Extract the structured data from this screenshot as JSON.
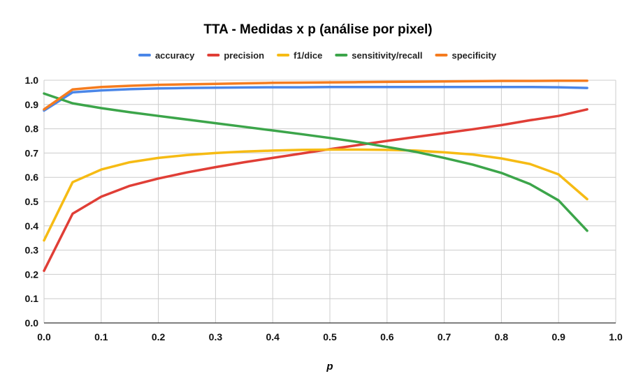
{
  "chart_data": {
    "type": "line",
    "title": "TTA - Medidas x p (análise por pixel)",
    "xlabel": "p",
    "ylabel": "",
    "xlim": [
      0,
      1
    ],
    "ylim": [
      0,
      1
    ],
    "grid": true,
    "legend_position": "top",
    "x_ticks": [
      "0.0",
      "0.1",
      "0.2",
      "0.3",
      "0.4",
      "0.5",
      "0.6",
      "0.7",
      "0.8",
      "0.9",
      "1.0"
    ],
    "y_ticks": [
      "0.0",
      "0.1",
      "0.2",
      "0.3",
      "0.4",
      "0.5",
      "0.6",
      "0.7",
      "0.8",
      "0.9",
      "1.0"
    ],
    "x": [
      0,
      0.05,
      0.1,
      0.15,
      0.2,
      0.25,
      0.3,
      0.35,
      0.4,
      0.45,
      0.5,
      0.55,
      0.6,
      0.65,
      0.7,
      0.75,
      0.8,
      0.85,
      0.9,
      0.95
    ],
    "series": [
      {
        "name": "accuracy",
        "color": "#4a86e8",
        "values": [
          0.875,
          0.95,
          0.958,
          0.963,
          0.966,
          0.968,
          0.969,
          0.97,
          0.971,
          0.971,
          0.972,
          0.972,
          0.972,
          0.972,
          0.972,
          0.972,
          0.972,
          0.972,
          0.971,
          0.968
        ]
      },
      {
        "name": "precision",
        "color": "#e03e36",
        "values": [
          0.215,
          0.45,
          0.52,
          0.565,
          0.595,
          0.62,
          0.642,
          0.662,
          0.68,
          0.698,
          0.716,
          0.733,
          0.75,
          0.766,
          0.782,
          0.798,
          0.815,
          0.835,
          0.853,
          0.88
        ]
      },
      {
        "name": "f1/dice",
        "color": "#f6bb14",
        "values": [
          0.34,
          0.58,
          0.632,
          0.662,
          0.68,
          0.692,
          0.7,
          0.706,
          0.71,
          0.713,
          0.714,
          0.714,
          0.713,
          0.71,
          0.703,
          0.694,
          0.678,
          0.655,
          0.612,
          0.51
        ]
      },
      {
        "name": "sensitivity/recall",
        "color": "#3ca54a",
        "values": [
          0.945,
          0.905,
          0.885,
          0.868,
          0.853,
          0.838,
          0.823,
          0.808,
          0.793,
          0.778,
          0.762,
          0.745,
          0.725,
          0.705,
          0.68,
          0.652,
          0.618,
          0.572,
          0.505,
          0.38
        ]
      },
      {
        "name": "specificity",
        "color": "#f57c1f",
        "values": [
          0.88,
          0.962,
          0.972,
          0.977,
          0.981,
          0.983,
          0.985,
          0.987,
          0.989,
          0.99,
          0.991,
          0.992,
          0.993,
          0.994,
          0.995,
          0.996,
          0.997,
          0.997,
          0.998,
          0.998
        ]
      }
    ]
  }
}
